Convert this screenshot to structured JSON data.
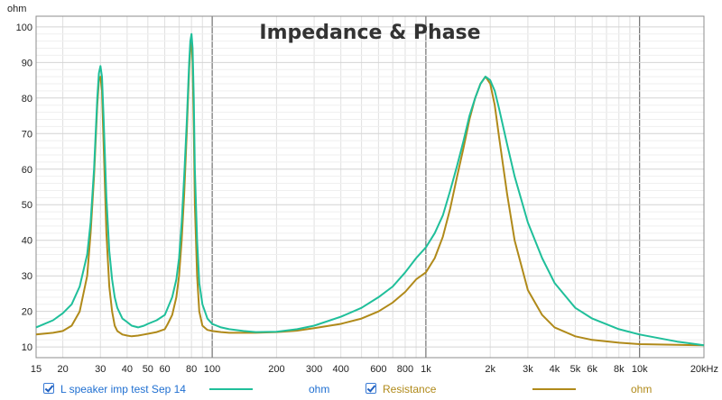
{
  "chart_data": {
    "type": "line",
    "title": "Impedance & Phase",
    "ylabel": "ohm",
    "xscale": "log",
    "xlim": [
      15,
      20000
    ],
    "ylim": [
      7,
      103
    ],
    "yticks": [
      10,
      20,
      30,
      40,
      50,
      60,
      70,
      80,
      90,
      100
    ],
    "xticks": [
      {
        "value": 15,
        "label": "15"
      },
      {
        "value": 20,
        "label": "20"
      },
      {
        "value": 30,
        "label": "30"
      },
      {
        "value": 40,
        "label": "40"
      },
      {
        "value": 50,
        "label": "50"
      },
      {
        "value": 60,
        "label": "60"
      },
      {
        "value": 80,
        "label": "80"
      },
      {
        "value": 100,
        "label": "100"
      },
      {
        "value": 200,
        "label": "200"
      },
      {
        "value": 300,
        "label": "300"
      },
      {
        "value": 400,
        "label": "400"
      },
      {
        "value": 600,
        "label": "600"
      },
      {
        "value": 800,
        "label": "800"
      },
      {
        "value": 1000,
        "label": "1k"
      },
      {
        "value": 2000,
        "label": "2k"
      },
      {
        "value": 3000,
        "label": "3k"
      },
      {
        "value": 4000,
        "label": "4k"
      },
      {
        "value": 5000,
        "label": "5k"
      },
      {
        "value": 6000,
        "label": "6k"
      },
      {
        "value": 8000,
        "label": "8k"
      },
      {
        "value": 10000,
        "label": "10k"
      },
      {
        "value": 20000,
        "label": "20kHz"
      }
    ],
    "grid": true,
    "legend_position": "bottom",
    "series": [
      {
        "name": "L speaker imp test Sep 14",
        "unit": "ohm",
        "color": "#1fbf9a",
        "x": [
          15,
          18,
          20,
          22,
          24,
          26,
          27,
          28,
          29,
          29.5,
          30,
          30.5,
          31,
          32,
          33,
          34,
          35,
          36,
          38,
          40,
          42,
          45,
          48,
          50,
          55,
          60,
          62,
          65,
          68,
          70,
          72,
          74,
          76,
          78,
          79,
          80,
          81,
          82,
          83,
          85,
          87,
          90,
          95,
          100,
          110,
          120,
          140,
          160,
          200,
          250,
          300,
          400,
          500,
          600,
          700,
          800,
          900,
          1000,
          1100,
          1200,
          1300,
          1400,
          1500,
          1600,
          1700,
          1800,
          1900,
          2000,
          2100,
          2200,
          2400,
          2600,
          3000,
          3500,
          4000,
          5000,
          6000,
          8000,
          10000,
          15000,
          20000
        ],
        "y": [
          15.5,
          17.5,
          19.5,
          22,
          27,
          36,
          45,
          60,
          80,
          87,
          89,
          86,
          75,
          52,
          37,
          29,
          24,
          21,
          18,
          17,
          16,
          15.5,
          16,
          16.5,
          17.5,
          19,
          21,
          24,
          29,
          35,
          45,
          58,
          73,
          90,
          96,
          98,
          94,
          80,
          60,
          40,
          28,
          22,
          18,
          16.5,
          15.5,
          15,
          14.5,
          14.2,
          14.3,
          15,
          16,
          18.5,
          21,
          24,
          27,
          31,
          35,
          38,
          42,
          47,
          54,
          61,
          68,
          75,
          80,
          84,
          86,
          85,
          82,
          77,
          67,
          58,
          45,
          35,
          28,
          21,
          18,
          15,
          13.5,
          11.5,
          10.5
        ]
      },
      {
        "name": "Resistance",
        "unit": "ohm",
        "color": "#b08a1a",
        "x": [
          15,
          18,
          20,
          22,
          24,
          26,
          27,
          28,
          29,
          29.5,
          30,
          30.5,
          31,
          32,
          33,
          34,
          35,
          36,
          38,
          40,
          42,
          45,
          48,
          50,
          55,
          60,
          62,
          65,
          68,
          70,
          72,
          74,
          76,
          78,
          79,
          80,
          81,
          82,
          83,
          85,
          87,
          90,
          95,
          100,
          110,
          120,
          140,
          160,
          200,
          250,
          300,
          400,
          500,
          600,
          700,
          800,
          900,
          1000,
          1100,
          1200,
          1300,
          1400,
          1500,
          1600,
          1700,
          1800,
          1900,
          2000,
          2100,
          2200,
          2400,
          2600,
          3000,
          3500,
          4000,
          5000,
          6000,
          8000,
          10000,
          15000,
          20000
        ],
        "y": [
          13.5,
          14,
          14.5,
          16,
          20,
          30,
          42,
          58,
          78,
          85,
          86,
          82,
          68,
          42,
          27,
          20,
          16,
          14.5,
          13.5,
          13.2,
          13,
          13.2,
          13.5,
          13.7,
          14.2,
          15,
          16.5,
          19,
          24,
          30,
          40,
          53,
          70,
          88,
          94,
          96,
          90,
          72,
          50,
          30,
          20,
          16,
          14.8,
          14.5,
          14.2,
          14,
          14,
          14,
          14.2,
          14.6,
          15.3,
          16.5,
          18,
          20,
          22.5,
          25.5,
          29,
          31,
          35,
          41,
          49,
          58,
          66,
          74,
          80,
          84,
          86,
          84,
          78,
          69,
          53,
          40,
          26,
          19,
          15.5,
          13,
          12,
          11.2,
          10.8,
          10.6,
          10.5
        ]
      }
    ]
  }
}
